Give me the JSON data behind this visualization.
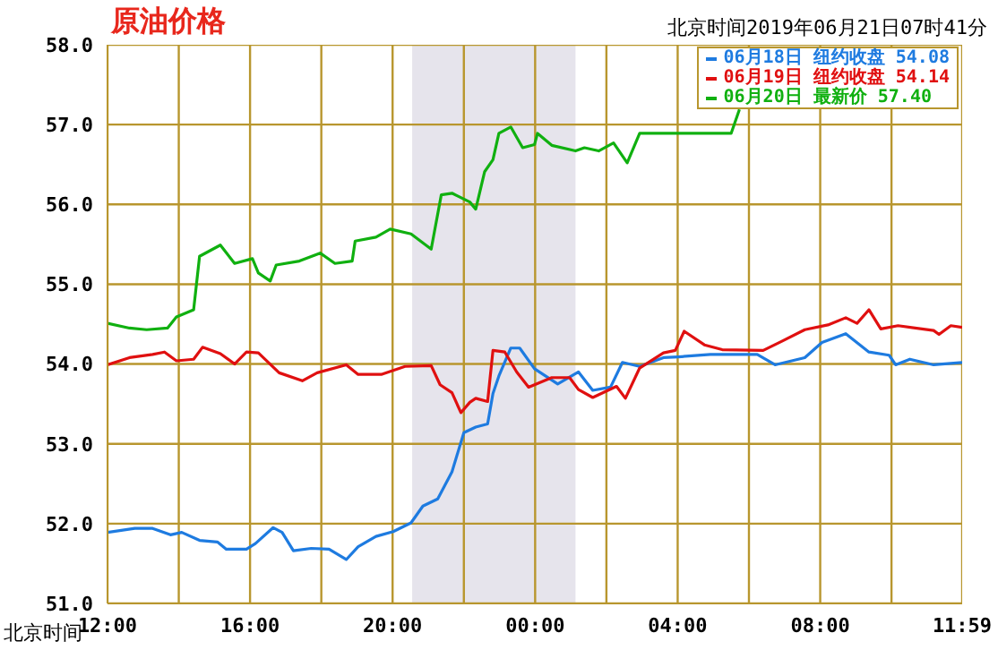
{
  "chart_data": {
    "type": "line",
    "title": "原油价格",
    "subtitle": "北京时间2019年06月21日07时41分",
    "xlabel": "北京时间",
    "xlim": [
      "2019-06-20T12:00",
      "2019-06-21T11:59"
    ],
    "xticks": [
      {
        "value": "2019-06-20T12:00",
        "label": "12:00"
      },
      {
        "value": "2019-06-20T14:00",
        "label": null
      },
      {
        "value": "2019-06-20T16:00",
        "label": "16:00"
      },
      {
        "value": "2019-06-20T18:00",
        "label": null
      },
      {
        "value": "2019-06-20T20:00",
        "label": "20:00"
      },
      {
        "value": "2019-06-20T22:00",
        "label": null
      },
      {
        "value": "2019-06-21T00:00",
        "label": "00:00"
      },
      {
        "value": "2019-06-21T02:00",
        "label": null
      },
      {
        "value": "2019-06-21T04:00",
        "label": "04:00"
      },
      {
        "value": "2019-06-21T06:00",
        "label": null
      },
      {
        "value": "2019-06-21T08:00",
        "label": "08:00"
      },
      {
        "value": "2019-06-21T10:00",
        "label": null
      },
      {
        "value": "2019-06-21T11:59",
        "label": "11:59"
      }
    ],
    "ylim": [
      51,
      58
    ],
    "yticks": [
      {
        "value": 51,
        "label": "51.0"
      },
      {
        "value": 52,
        "label": "52.0"
      },
      {
        "value": 53,
        "label": "53.0"
      },
      {
        "value": 54,
        "label": "54.0"
      },
      {
        "value": 55,
        "label": "55.0"
      },
      {
        "value": 56,
        "label": "56.0"
      },
      {
        "value": 57,
        "label": "57.0"
      },
      {
        "value": 58,
        "label": "58.0"
      }
    ],
    "grid": true,
    "legend": "top right",
    "marker": "none",
    "line_style": "solid",
    "bands": [
      {
        "axis": "x",
        "from": "2019-06-20T20:33",
        "to": "2019-06-21T01:08",
        "color": "#e6e4ec"
      }
    ],
    "series": [
      {
        "name": "06月18日 纽约收盘 54.08",
        "color": "#1e7be0",
        "x": [
          "2019-06-20T12:00",
          "2019-06-20T12:46",
          "2019-06-20T13:16",
          "2019-06-20T13:46",
          "2019-06-20T14:05",
          "2019-06-20T14:35",
          "2019-06-20T15:05",
          "2019-06-20T15:20",
          "2019-06-20T15:54",
          "2019-06-20T16:09",
          "2019-06-20T16:39",
          "2019-06-20T16:54",
          "2019-06-20T17:13",
          "2019-06-20T17:43",
          "2019-06-20T18:13",
          "2019-06-20T18:42",
          "2019-06-20T19:02",
          "2019-06-20T19:32",
          "2019-06-20T20:01",
          "2019-06-20T20:31",
          "2019-06-20T20:51",
          "2019-06-20T21:16",
          "2019-06-20T21:40",
          "2019-06-20T22:00",
          "2019-06-20T22:20",
          "2019-06-20T22:40",
          "2019-06-20T22:49",
          "2019-06-20T22:59",
          "2019-06-20T23:19",
          "2019-06-20T23:34",
          "2019-06-20T23:59",
          "2019-06-21T00:38",
          "2019-06-21T01:13",
          "2019-06-21T01:37",
          "2019-06-21T02:07",
          "2019-06-21T02:27",
          "2019-06-21T02:56",
          "2019-06-21T03:36",
          "2019-06-21T04:01",
          "2019-06-21T04:55",
          "2019-06-21T06:14",
          "2019-06-21T06:44",
          "2019-06-21T07:34",
          "2019-06-21T08:03",
          "2019-06-21T08:43",
          "2019-06-21T09:22",
          "2019-06-21T09:56",
          "2019-06-21T10:07",
          "2019-06-21T10:31",
          "2019-06-21T11:11",
          "2019-06-21T11:59"
        ],
        "values": [
          51.89,
          51.94,
          51.94,
          51.86,
          51.89,
          51.79,
          51.77,
          51.68,
          51.68,
          51.75,
          51.95,
          51.89,
          51.66,
          51.69,
          51.68,
          51.55,
          51.71,
          51.84,
          51.9,
          52.01,
          52.22,
          52.31,
          52.65,
          53.14,
          53.21,
          53.25,
          53.63,
          53.85,
          54.2,
          54.2,
          53.94,
          53.75,
          53.9,
          53.67,
          53.71,
          54.02,
          53.97,
          54.08,
          54.09,
          54.12,
          54.12,
          53.99,
          54.08,
          54.27,
          54.38,
          54.15,
          54.11,
          53.99,
          54.06,
          53.99,
          54.02
        ]
      },
      {
        "name": "06月19日 纽约收盘 54.14",
        "color": "#e01010",
        "x": [
          "2019-06-20T12:00",
          "2019-06-20T12:37",
          "2019-06-20T13:16",
          "2019-06-20T13:36",
          "2019-06-20T13:56",
          "2019-06-20T14:25",
          "2019-06-20T14:40",
          "2019-06-20T15:10",
          "2019-06-20T15:34",
          "2019-06-20T15:54",
          "2019-06-20T16:14",
          "2019-06-20T16:49",
          "2019-06-20T17:28",
          "2019-06-20T17:53",
          "2019-06-20T18:42",
          "2019-06-20T19:02",
          "2019-06-20T19:41",
          "2019-06-20T20:21",
          "2019-06-20T21:05",
          "2019-06-20T21:20",
          "2019-06-20T21:40",
          "2019-06-20T21:55",
          "2019-06-20T22:10",
          "2019-06-20T22:20",
          "2019-06-20T22:40",
          "2019-06-20T22:49",
          "2019-06-20T23:09",
          "2019-06-20T23:29",
          "2019-06-20T23:49",
          "2019-06-21T00:28",
          "2019-06-21T00:58",
          "2019-06-21T01:13",
          "2019-06-21T01:37",
          "2019-06-21T02:17",
          "2019-06-21T02:32",
          "2019-06-21T02:56",
          "2019-06-21T03:36",
          "2019-06-21T03:56",
          "2019-06-21T04:11",
          "2019-06-21T04:45",
          "2019-06-21T05:15",
          "2019-06-21T06:24",
          "2019-06-21T06:54",
          "2019-06-21T07:34",
          "2019-06-21T08:13",
          "2019-06-21T08:43",
          "2019-06-21T09:02",
          "2019-06-21T09:22",
          "2019-06-21T09:42",
          "2019-06-21T10:11",
          "2019-06-21T11:11",
          "2019-06-21T11:20",
          "2019-06-21T11:40",
          "2019-06-21T11:59"
        ],
        "values": [
          53.99,
          54.08,
          54.12,
          54.15,
          54.04,
          54.06,
          54.21,
          54.13,
          54,
          54.15,
          54.14,
          53.89,
          53.79,
          53.89,
          53.99,
          53.87,
          53.87,
          53.97,
          53.98,
          53.74,
          53.64,
          53.39,
          53.52,
          53.57,
          53.53,
          54.17,
          54.15,
          53.9,
          53.71,
          53.83,
          53.83,
          53.68,
          53.58,
          53.72,
          53.57,
          53.95,
          54.14,
          54.17,
          54.41,
          54.24,
          54.18,
          54.17,
          54.28,
          54.43,
          54.49,
          54.58,
          54.51,
          54.68,
          54.44,
          54.48,
          54.42,
          54.37,
          54.48,
          54.46
        ]
      },
      {
        "name": "06月20日 最新价 57.40",
        "color": "#10b010",
        "x": [
          "2019-06-20T12:00",
          "2019-06-20T12:37",
          "2019-06-20T13:06",
          "2019-06-20T13:41",
          "2019-06-20T13:56",
          "2019-06-20T14:25",
          "2019-06-20T14:35",
          "2019-06-20T15:10",
          "2019-06-20T15:34",
          "2019-06-20T16:04",
          "2019-06-20T16:14",
          "2019-06-20T16:34",
          "2019-06-20T16:44",
          "2019-06-20T17:23",
          "2019-06-20T17:58",
          "2019-06-20T18:23",
          "2019-06-20T18:52",
          "2019-06-20T18:57",
          "2019-06-20T19:32",
          "2019-06-20T19:56",
          "2019-06-20T20:31",
          "2019-06-20T21:05",
          "2019-06-20T21:22",
          "2019-06-20T21:40",
          "2019-06-20T22:10",
          "2019-06-20T22:20",
          "2019-06-20T22:35",
          "2019-06-20T22:49",
          "2019-06-20T22:59",
          "2019-06-20T23:19",
          "2019-06-20T23:39",
          "2019-06-20T23:59",
          "2019-06-21T00:04",
          "2019-06-21T00:28",
          "2019-06-21T01:08",
          "2019-06-21T01:23",
          "2019-06-21T01:47",
          "2019-06-21T02:12",
          "2019-06-21T02:35",
          "2019-06-21T02:56",
          "2019-06-21T05:30",
          "2019-06-21T05:44"
        ],
        "values": [
          54.51,
          54.45,
          54.43,
          54.45,
          54.59,
          54.68,
          55.35,
          55.49,
          55.26,
          55.32,
          55.14,
          55.04,
          55.24,
          55.29,
          55.39,
          55.26,
          55.29,
          55.54,
          55.59,
          55.69,
          55.63,
          55.44,
          56.12,
          56.14,
          56.03,
          55.94,
          56.41,
          56.56,
          56.89,
          56.97,
          56.71,
          56.75,
          56.89,
          56.74,
          56.67,
          56.71,
          56.67,
          56.77,
          56.52,
          56.89,
          56.89,
          57.19
        ]
      }
    ]
  }
}
